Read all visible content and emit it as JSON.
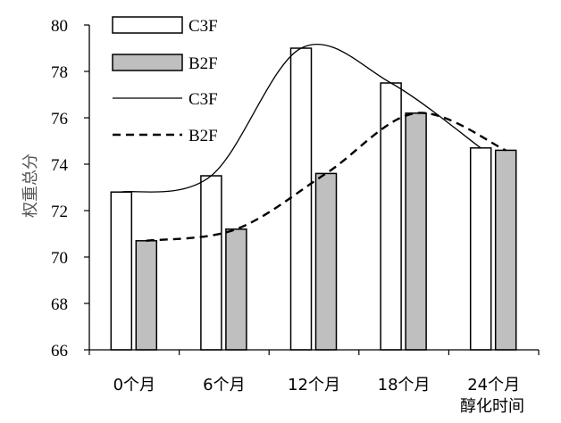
{
  "chart_data": {
    "type": "bar",
    "title": "",
    "xlabel": "醇化时间",
    "ylabel": "权重总分",
    "ylim": [
      66,
      80
    ],
    "yticks": [
      66,
      68,
      70,
      72,
      74,
      76,
      78,
      80
    ],
    "categories": [
      "0个月",
      "6个月",
      "12个月",
      "18个月",
      "24个月"
    ],
    "series": [
      {
        "name": "C3F",
        "kind": "bar",
        "color": "#ffffff",
        "values": [
          72.8,
          73.5,
          79.0,
          77.5,
          74.7
        ]
      },
      {
        "name": "B2F",
        "kind": "bar",
        "color": "#bfbfbf",
        "values": [
          70.7,
          71.2,
          73.6,
          76.2,
          74.6
        ]
      },
      {
        "name": "C3F",
        "kind": "line",
        "style": "solid",
        "values": [
          72.8,
          73.5,
          79.0,
          77.5,
          74.7
        ]
      },
      {
        "name": "B2F",
        "kind": "line",
        "style": "dashed",
        "values": [
          70.7,
          71.2,
          73.6,
          76.2,
          74.6
        ]
      }
    ],
    "grid": false,
    "legend_position": "top-left"
  }
}
